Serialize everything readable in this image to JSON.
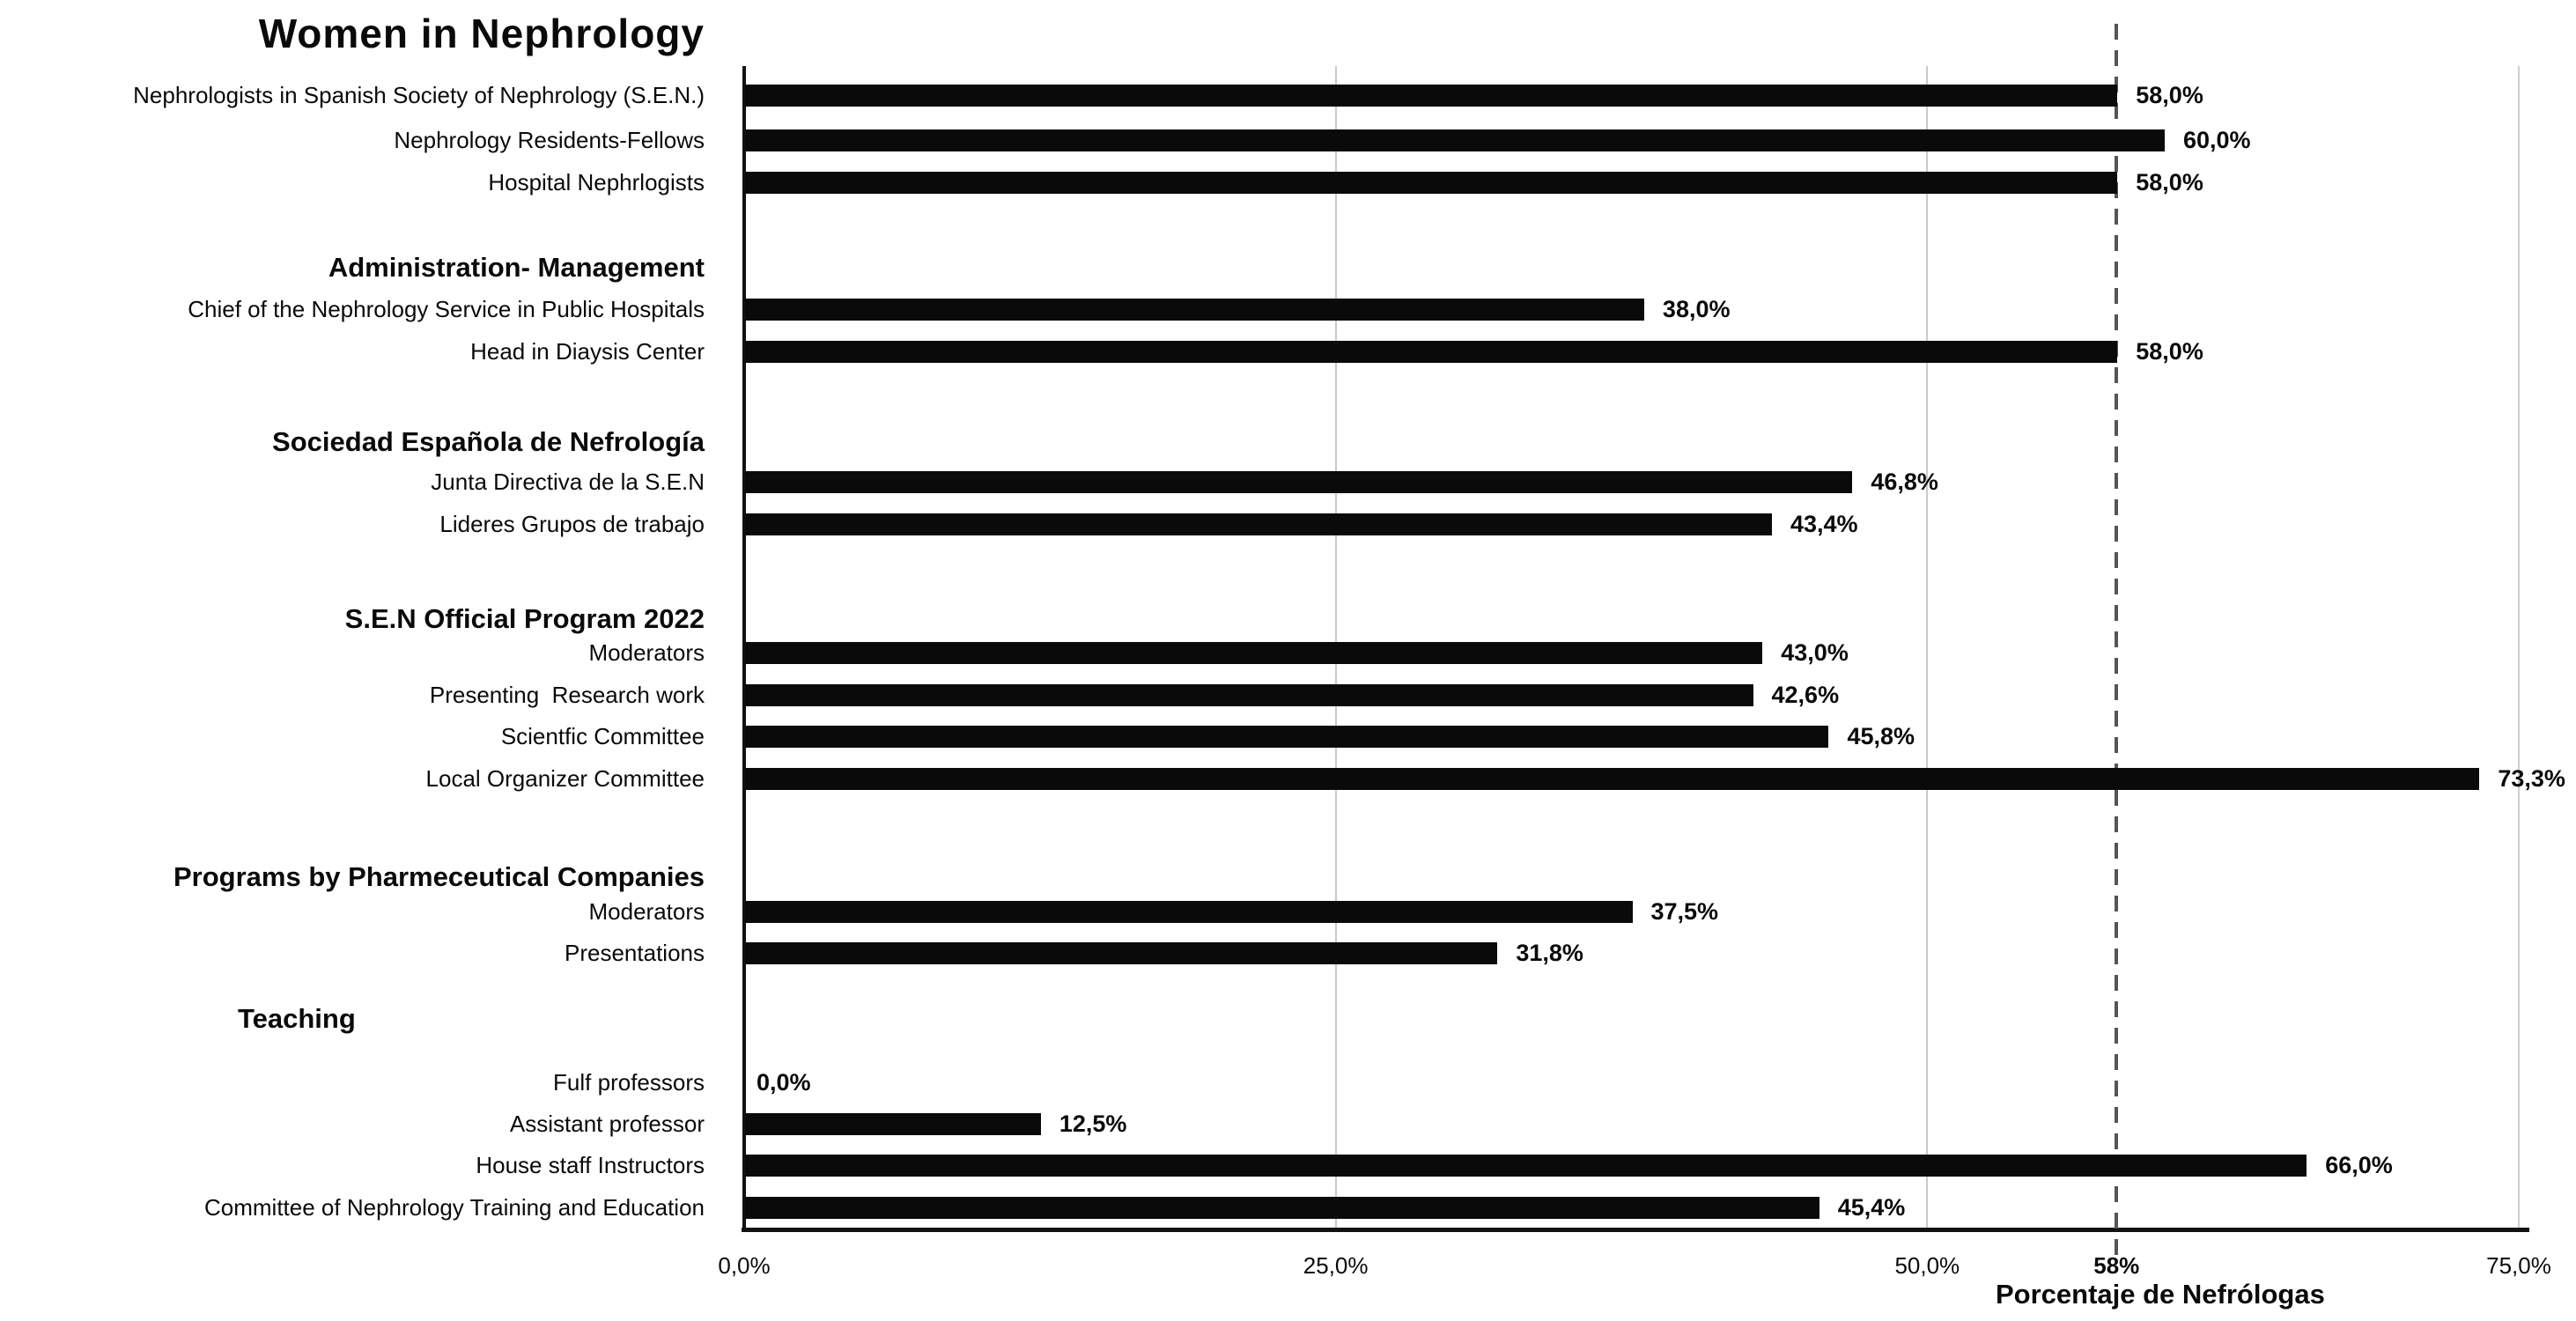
{
  "chart_data": {
    "type": "bar",
    "orientation": "horizontal",
    "title": "Women in Nephrology",
    "xlabel": "Porcentaje de Nefrólogas",
    "xlim": [
      0,
      75
    ],
    "x_ticks": [
      {
        "label": "0,0%",
        "value": 0,
        "bold": false
      },
      {
        "label": "25,0%",
        "value": 25,
        "bold": false
      },
      {
        "label": "50,0%",
        "value": 50,
        "bold": false
      },
      {
        "label": "58%",
        "value": 58,
        "bold": true
      },
      {
        "label": "75,0%",
        "value": 75,
        "bold": false
      }
    ],
    "gridlines": [
      25,
      50
    ],
    "reference_line": {
      "value": 58,
      "style": "dashed"
    },
    "legend": "none",
    "colors": {
      "bar": "#0a0a0a",
      "axis": "#111111",
      "gridline": "#c9c9c9",
      "plot_right_border": "#cfcfcf",
      "reference_line": "#555555",
      "text": "#0a0a0a"
    },
    "groups": [
      {
        "header": null,
        "items": [
          {
            "label": "Nephrologists in Spanish Society of Nephrology (S.E.N.)",
            "value": 58.0,
            "value_label": "58,0%"
          },
          {
            "label": "Nephrology Residents-Fellows",
            "value": 60.0,
            "value_label": "60,0%"
          },
          {
            "label": "Hospital Nephrlogists",
            "value": 58.0,
            "value_label": "58,0%"
          }
        ]
      },
      {
        "header": "Administration- Management",
        "items": [
          {
            "label": "Chief of the Nephrology Service in Public Hospitals",
            "value": 38.0,
            "value_label": "38,0%"
          },
          {
            "label": "Head in Diaysis Center",
            "value": 58.0,
            "value_label": "58,0%"
          }
        ]
      },
      {
        "header": "Sociedad Española de Nefrología",
        "items": [
          {
            "label": "Junta Directiva de la S.E.N",
            "value": 46.8,
            "value_label": "46,8%"
          },
          {
            "label": "Lideres Grupos de trabajo",
            "value": 43.4,
            "value_label": "43,4%"
          }
        ]
      },
      {
        "header": "S.E.N Official Program 2022",
        "items": [
          {
            "label": "Moderators",
            "value": 43.0,
            "value_label": "43,0%"
          },
          {
            "label": "Presenting  Research work",
            "value": 42.6,
            "value_label": "42,6%"
          },
          {
            "label": "Scientfic Committee",
            "value": 45.8,
            "value_label": "45,8%"
          },
          {
            "label": "Local Organizer Committee",
            "value": 73.3,
            "value_label": "73,3%"
          }
        ]
      },
      {
        "header": "Programs by Pharmeceutical Companies",
        "items": [
          {
            "label": "Moderators",
            "value": 37.5,
            "value_label": "37,5%"
          },
          {
            "label": "Presentations",
            "value": 31.8,
            "value_label": "31,8%"
          }
        ]
      },
      {
        "header": "Teaching",
        "items": [
          {
            "label": "Fulf professors",
            "value": 0.0,
            "value_label": "0,0%"
          },
          {
            "label": "Assistant professor",
            "value": 12.5,
            "value_label": "12,5%"
          },
          {
            "label": "House staff Instructors",
            "value": 66.0,
            "value_label": "66,0%"
          },
          {
            "label": "Committee of Nephrology Training and Education",
            "value": 45.4,
            "value_label": "45,4%"
          }
        ]
      }
    ]
  }
}
